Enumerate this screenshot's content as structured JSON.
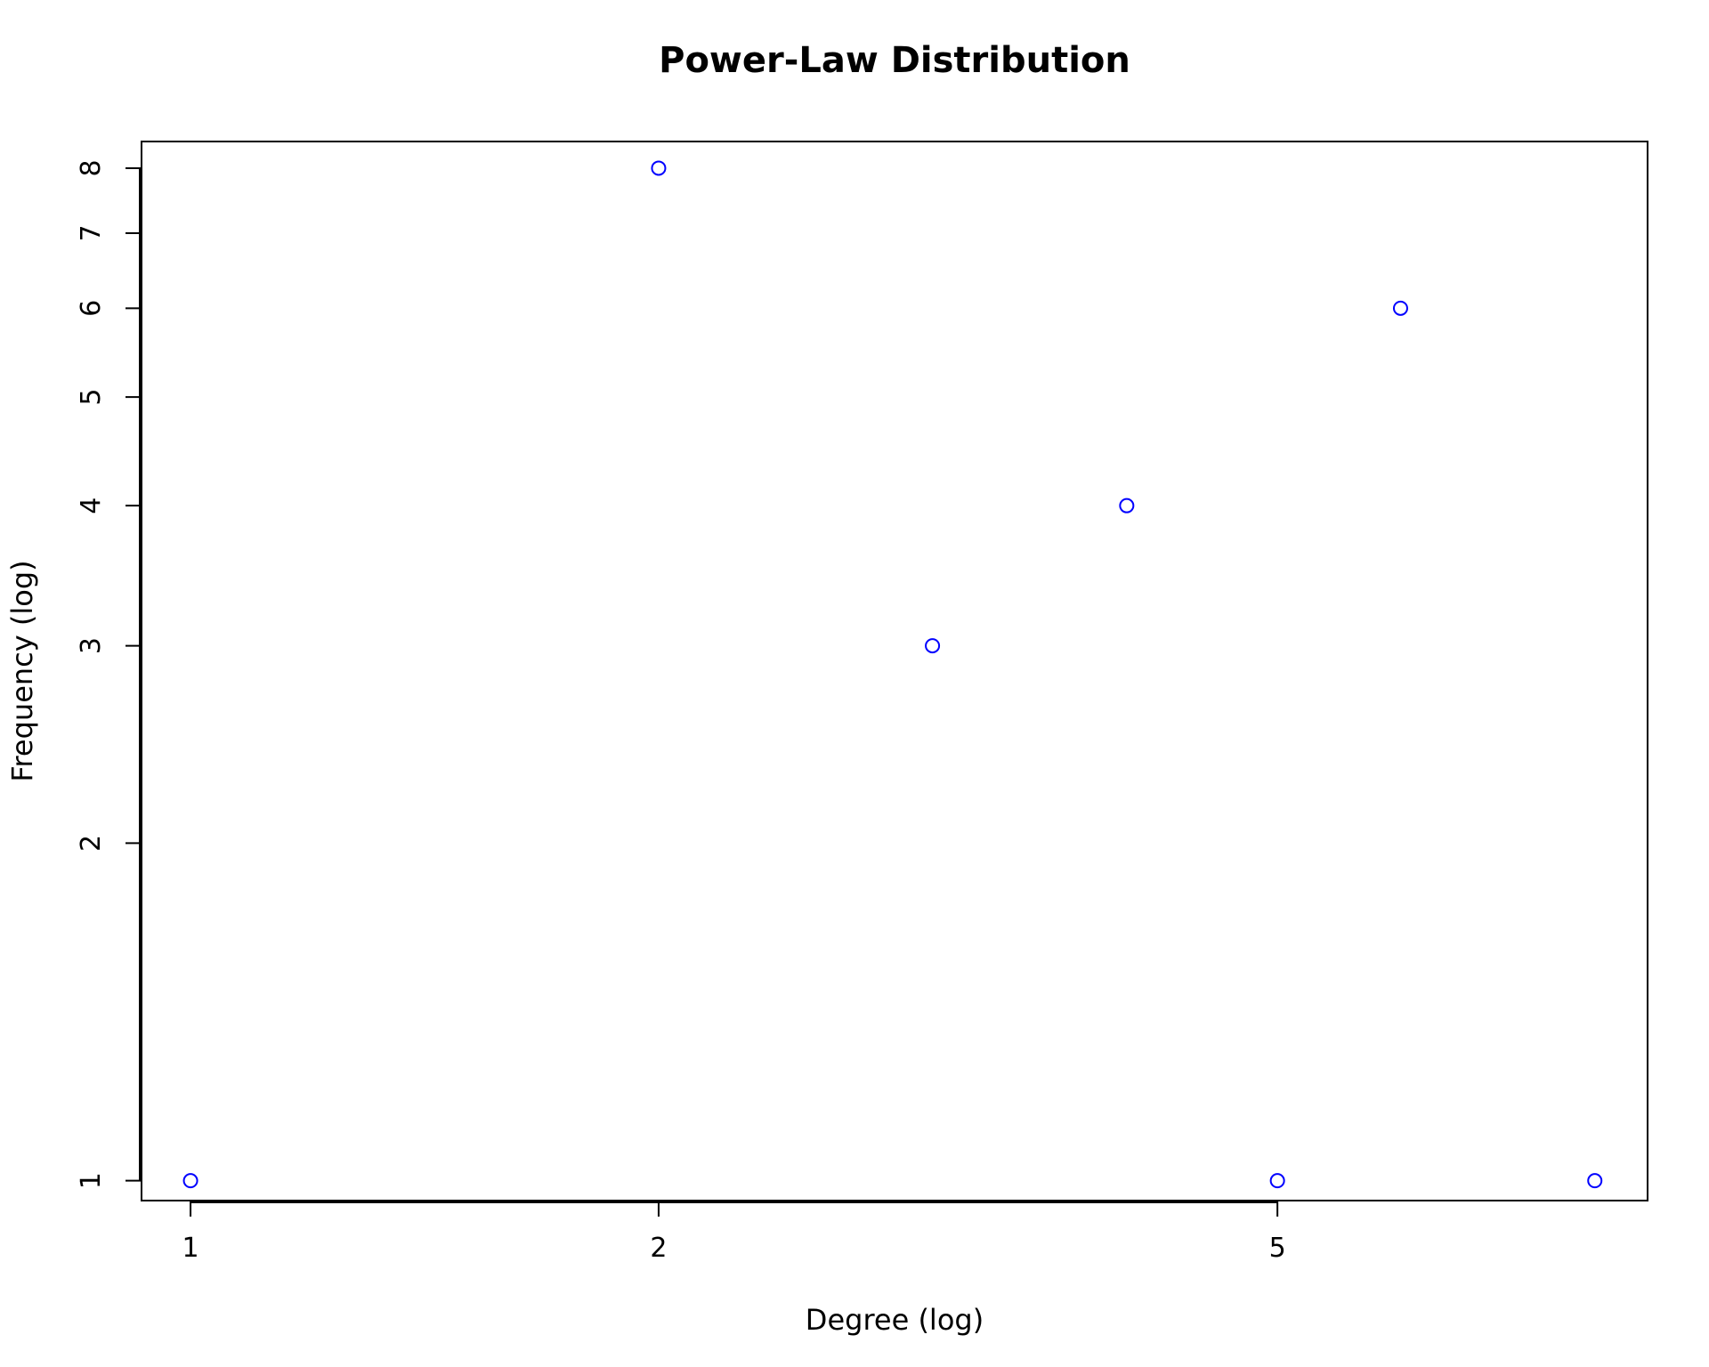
{
  "chart_data": {
    "type": "scatter",
    "title": "Power-Law Distribution",
    "xlabel": "Degree (log)",
    "ylabel": "Frequency (log)",
    "x_scale": "log",
    "y_scale": "log",
    "xlim": [
      0.93,
      8.65
    ],
    "ylim": [
      0.96,
      8.45
    ],
    "x_ticks": [
      1,
      2,
      5
    ],
    "x_tick_labels": [
      "1",
      "2",
      "5"
    ],
    "y_ticks": [
      1,
      2,
      3,
      4,
      5,
      6,
      7,
      8
    ],
    "y_tick_labels": [
      "1",
      "2",
      "3",
      "4",
      "5",
      "6",
      "7",
      "8"
    ],
    "grid": false,
    "marker": "open-circle",
    "point_color": "#0000ff",
    "series": [
      {
        "x": [
          1,
          2,
          3,
          4,
          5,
          6,
          8
        ],
        "y": [
          1,
          8,
          3,
          4,
          1,
          6,
          1
        ]
      }
    ]
  }
}
